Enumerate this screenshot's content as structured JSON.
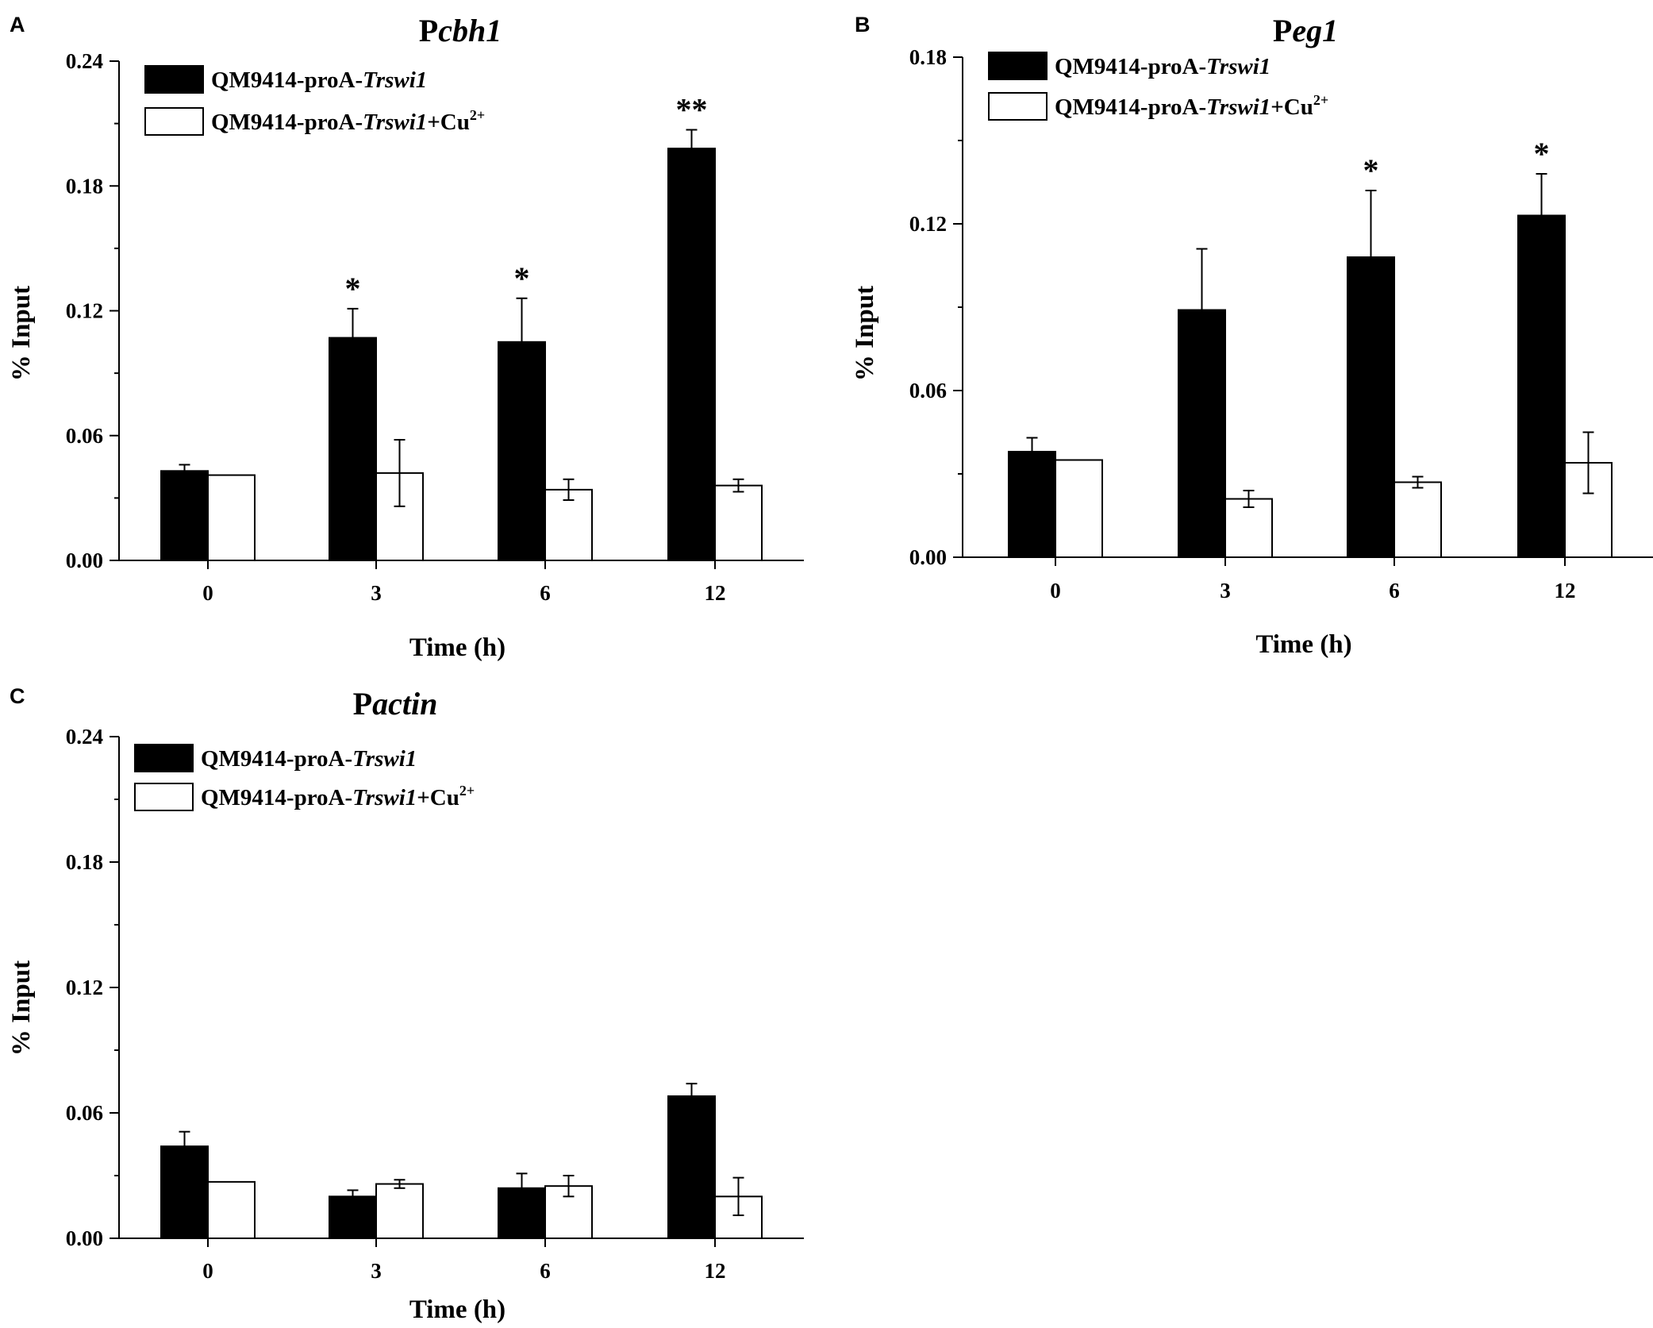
{
  "chart_data": [
    {
      "type": "bar",
      "panel": "A",
      "title_prefix": "P",
      "title_italic": "cbh1",
      "xlabel": "Time (h)",
      "ylabel": "% Input",
      "categories": [
        "0",
        "3",
        "6",
        "12"
      ],
      "ylim": [
        0,
        0.24
      ],
      "yticks": [
        "0.00",
        "0.06",
        "0.12",
        "0.18",
        "0.24"
      ],
      "series": [
        {
          "legend": {
            "prefix": "QM9414-proA-",
            "italic": "Trswi1",
            "suffix": "",
            "sup": ""
          },
          "color": "#000000",
          "values": [
            0.043,
            0.107,
            0.105,
            0.198
          ],
          "errors": [
            0.003,
            0.014,
            0.021,
            0.009
          ]
        },
        {
          "legend": {
            "prefix": "QM9414-proA-",
            "italic": "Trswi1",
            "suffix": "+Cu",
            "sup": "2+"
          },
          "color": "#ffffff",
          "values": [
            0.041,
            0.042,
            0.034,
            0.036
          ],
          "errors": [
            0.0,
            0.016,
            0.005,
            0.003
          ]
        }
      ],
      "annotations": [
        "",
        "*",
        "*",
        "**"
      ],
      "grid": false,
      "legend_position": "top-left"
    },
    {
      "type": "bar",
      "panel": "B",
      "title_prefix": "P",
      "title_italic": "eg1",
      "xlabel": "Time (h)",
      "ylabel": "% Input",
      "categories": [
        "0",
        "3",
        "6",
        "12"
      ],
      "ylim": [
        0,
        0.18
      ],
      "yticks": [
        "0.00",
        "0.06",
        "0.12",
        "0.18"
      ],
      "series": [
        {
          "legend": {
            "prefix": "QM9414-proA-",
            "italic": "Trswi1",
            "suffix": "",
            "sup": ""
          },
          "color": "#000000",
          "values": [
            0.038,
            0.089,
            0.108,
            0.123
          ],
          "errors": [
            0.005,
            0.022,
            0.024,
            0.015
          ]
        },
        {
          "legend": {
            "prefix": "QM9414-proA-",
            "italic": "Trswi1",
            "suffix": "+Cu",
            "sup": "2+"
          },
          "color": "#ffffff",
          "values": [
            0.035,
            0.021,
            0.027,
            0.034
          ],
          "errors": [
            0.0,
            0.003,
            0.002,
            0.011
          ]
        }
      ],
      "annotations": [
        "",
        "",
        "*",
        "*"
      ],
      "grid": false,
      "legend_position": "top-left"
    },
    {
      "type": "bar",
      "panel": "C",
      "title_prefix": "P",
      "title_italic": "actin",
      "xlabel": "Time (h)",
      "ylabel": "% Input",
      "categories": [
        "0",
        "3",
        "6",
        "12"
      ],
      "ylim": [
        0,
        0.24
      ],
      "yticks": [
        "0.00",
        "0.06",
        "0.12",
        "0.18",
        "0.24"
      ],
      "series": [
        {
          "legend": {
            "prefix": "QM9414-proA-",
            "italic": "Trswi1",
            "suffix": "",
            "sup": ""
          },
          "color": "#000000",
          "values": [
            0.044,
            0.02,
            0.024,
            0.068
          ],
          "errors": [
            0.007,
            0.003,
            0.007,
            0.006
          ]
        },
        {
          "legend": {
            "prefix": "QM9414-proA-",
            "italic": "Trswi1",
            "suffix": "+Cu",
            "sup": "2+"
          },
          "color": "#ffffff",
          "values": [
            0.027,
            0.026,
            0.025,
            0.02
          ],
          "errors": [
            0.0,
            0.002,
            0.005,
            0.009
          ]
        }
      ],
      "annotations": [
        "",
        "",
        "",
        ""
      ],
      "grid": false,
      "legend_position": "top-left"
    }
  ]
}
